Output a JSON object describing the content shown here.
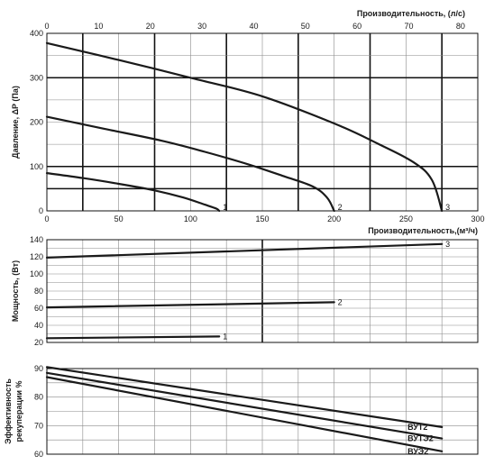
{
  "chart_data": [
    {
      "type": "line",
      "title": "",
      "xlabel": "Производительность,(м³/ч)",
      "x2label": "Производительность, (л/с)",
      "ylabel": "Давление, ΔP (Па)",
      "xlim": [
        0,
        300
      ],
      "x2lim": [
        0,
        83.33
      ],
      "ylim": [
        0,
        400
      ],
      "xticks": [
        0,
        50,
        100,
        150,
        200,
        250,
        300
      ],
      "x2ticks": [
        0,
        10,
        20,
        30,
        40,
        50,
        60,
        70,
        80
      ],
      "yticks": [
        0,
        100,
        200,
        300,
        400
      ],
      "grid": true,
      "series": [
        {
          "name": "1",
          "x": [
            0,
            25,
            50,
            75,
            95,
            110,
            118,
            120
          ],
          "y": [
            85,
            74,
            61,
            46,
            30,
            14,
            5,
            0
          ]
        },
        {
          "name": "2",
          "x": [
            0,
            40,
            80,
            110,
            140,
            165,
            185,
            195,
            200
          ],
          "y": [
            212,
            185,
            158,
            133,
            105,
            78,
            55,
            30,
            0
          ]
        },
        {
          "name": "3",
          "x": [
            0,
            50,
            100,
            150,
            200,
            230,
            255,
            268,
            275
          ],
          "y": [
            378,
            340,
            300,
            258,
            197,
            152,
            110,
            70,
            0
          ]
        }
      ]
    },
    {
      "type": "line",
      "title": "",
      "xlabel": "",
      "ylabel": "Мощность, (Вт)",
      "xlim": [
        0,
        300
      ],
      "ylim": [
        20,
        140
      ],
      "yticks": [
        20,
        40,
        60,
        80,
        100,
        120,
        140
      ],
      "grid": true,
      "series": [
        {
          "name": "1",
          "x": [
            0,
            120
          ],
          "y": [
            25,
            27
          ]
        },
        {
          "name": "2",
          "x": [
            0,
            200
          ],
          "y": [
            61,
            67
          ]
        },
        {
          "name": "3",
          "x": [
            0,
            275
          ],
          "y": [
            119,
            135
          ]
        }
      ]
    },
    {
      "type": "line",
      "title": "",
      "xlabel": "",
      "ylabel": "Эффективность рекуперации %",
      "xlim": [
        0,
        300
      ],
      "ylim": [
        60,
        90
      ],
      "yticks": [
        60,
        70,
        80,
        90
      ],
      "grid": true,
      "series": [
        {
          "name": "ВУТ2",
          "x": [
            0,
            275
          ],
          "y": [
            90.5,
            69.5
          ]
        },
        {
          "name": "ВУТЭ2",
          "x": [
            0,
            275
          ],
          "y": [
            88.5,
            65.5
          ]
        },
        {
          "name": "ВУЭ2",
          "x": [
            0,
            275
          ],
          "y": [
            87,
            61
          ]
        }
      ]
    }
  ]
}
